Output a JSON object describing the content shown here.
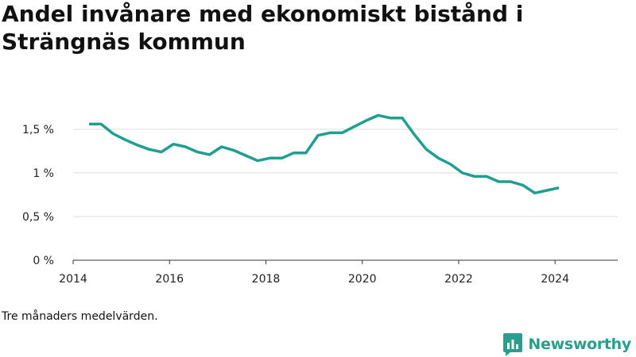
{
  "title": "Andel invånare med ekonomiskt bistånd i Strängnäs kommun",
  "note": "Tre månaders medelvärden.",
  "brand": {
    "name": "Newsworthy",
    "icon": "newsworthy-logo-icon",
    "color": "#2a9d8f"
  },
  "chart_data": {
    "type": "line",
    "title": "Andel invånare med ekonomiskt bistånd i Strängnäs kommun",
    "xlabel": "",
    "ylabel": "",
    "x_ticks": [
      "2014",
      "2016",
      "2018",
      "2020",
      "2022",
      "2024"
    ],
    "y_ticks": [
      "0 %",
      "0,5 %",
      "1 %",
      "1,5 %"
    ],
    "xlim": [
      2014.0,
      2025.3
    ],
    "ylim": [
      0,
      1.8
    ],
    "grid": true,
    "legend": "none",
    "series": [
      {
        "color": "#1f9e91",
        "x": [
          2014.33,
          2014.58,
          2014.83,
          2015.08,
          2015.33,
          2015.58,
          2015.83,
          2016.08,
          2016.33,
          2016.58,
          2016.83,
          2017.08,
          2017.33,
          2017.58,
          2017.83,
          2018.08,
          2018.33,
          2018.58,
          2018.83,
          2019.08,
          2019.33,
          2019.58,
          2019.83,
          2020.08,
          2020.33,
          2020.58,
          2020.83,
          2021.08,
          2021.33,
          2021.58,
          2021.83,
          2022.08,
          2022.33,
          2022.58,
          2022.83,
          2023.08,
          2023.33,
          2023.58,
          2023.83,
          2024.08
        ],
        "values": [
          1.56,
          1.56,
          1.45,
          1.38,
          1.32,
          1.27,
          1.24,
          1.33,
          1.3,
          1.24,
          1.21,
          1.3,
          1.26,
          1.2,
          1.14,
          1.17,
          1.17,
          1.23,
          1.23,
          1.43,
          1.46,
          1.46,
          1.53,
          1.6,
          1.66,
          1.63,
          1.63,
          1.44,
          1.27,
          1.17,
          1.1,
          1.0,
          0.96,
          0.96,
          0.9,
          0.9,
          0.86,
          0.77,
          0.8,
          0.83
        ]
      }
    ]
  }
}
